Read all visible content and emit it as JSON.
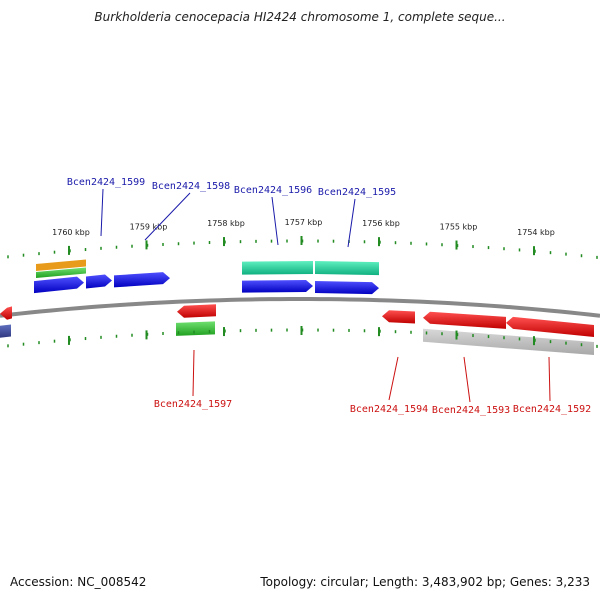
{
  "title": "Burkholderia cenocepacia HI2424 chromosome 1, complete seque...",
  "footer": {
    "accession": "Accession: NC_008542",
    "summary": "Topology: circular; Length: 3,483,902 bp; Genes: 3,233"
  },
  "colors": {
    "backbone": "#888888",
    "tick": "#228B22",
    "forward_gene": "#1010e0",
    "reverse_gene": "#e01010",
    "forward_label": "#1a1aaa",
    "reverse_label": "#cc1111"
  },
  "ticks": [
    {
      "kbp": 1760,
      "label": "1760 kbp"
    },
    {
      "kbp": 1759,
      "label": "1759 kbp"
    },
    {
      "kbp": 1758,
      "label": "1758 kbp"
    },
    {
      "kbp": 1757,
      "label": "1757 kbp"
    },
    {
      "kbp": 1756,
      "label": "1756 kbp"
    },
    {
      "kbp": 1755,
      "label": "1755 kbp"
    },
    {
      "kbp": 1754,
      "label": "1754 kbp"
    }
  ],
  "genes": [
    {
      "name": "Bcen2424_1599",
      "strand": "+"
    },
    {
      "name": "Bcen2424_1598",
      "strand": "+"
    },
    {
      "name": "Bcen2424_1597",
      "strand": "-"
    },
    {
      "name": "Bcen2424_1596",
      "strand": "+"
    },
    {
      "name": "Bcen2424_1595",
      "strand": "+"
    },
    {
      "name": "Bcen2424_1594",
      "strand": "-"
    },
    {
      "name": "Bcen2424_1593",
      "strand": "-"
    },
    {
      "name": "Bcen2424_1592",
      "strand": "-"
    }
  ]
}
